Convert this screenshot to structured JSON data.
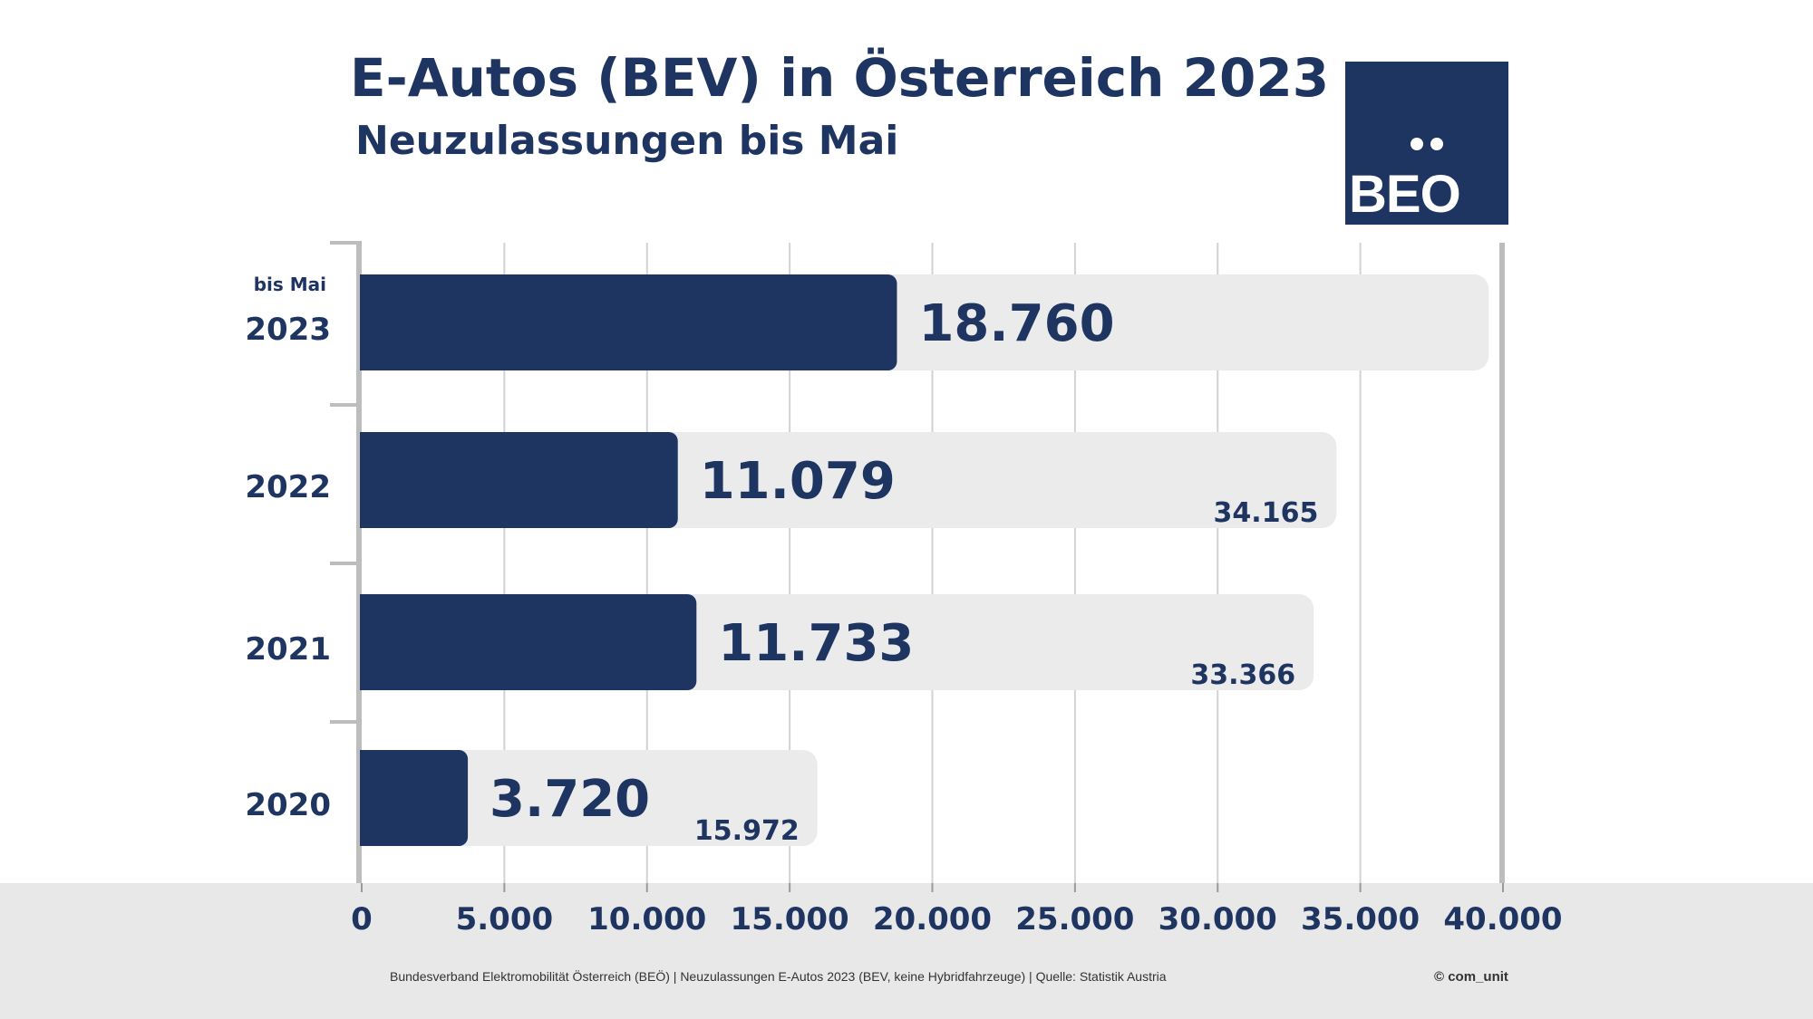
{
  "header": {
    "title": "E-Autos (BEV) in Österreich 2023",
    "subtitle": "Neuzulassungen bis Mai"
  },
  "logo": {
    "text": "BEO"
  },
  "colors": {
    "primary": "#1e3461",
    "bar_background": "#ebebeb",
    "grid": "#d2d2d2",
    "axis": "#bdbdbd",
    "footer_band": "#e8e8e8"
  },
  "chart_data": {
    "type": "bar",
    "orientation": "horizontal",
    "title": "E-Autos (BEV) in Österreich 2023",
    "subtitle": "Neuzulassungen bis Mai",
    "categories": [
      "2023",
      "2022",
      "2021",
      "2020"
    ],
    "category_notes": [
      "bis Mai",
      "",
      "",
      ""
    ],
    "series": [
      {
        "values": [
          18760,
          11079,
          11733,
          3720
        ],
        "labels": [
          "18.760",
          "11.079",
          "11.733",
          "3.720"
        ]
      },
      {
        "values": [
          39500,
          34165,
          33366,
          15972
        ],
        "labels": [
          "",
          "34.165",
          "33.366",
          "15.972"
        ]
      }
    ],
    "xlim": [
      0,
      40000
    ],
    "x_ticks": [
      0,
      5000,
      10000,
      15000,
      20000,
      25000,
      30000,
      35000,
      40000
    ],
    "x_tick_labels": [
      "0",
      "5.000",
      "10.000",
      "15.000",
      "20.000",
      "25.000",
      "30.000",
      "35.000",
      "40.000"
    ],
    "grid": true,
    "legend": "none"
  },
  "footer": {
    "source": "Bundesverband Elektromobilität Österreich (BEÖ) | Neuzulassungen E-Autos 2023 (BEV, keine Hybridfahrzeuge) | Quelle: Statistik Austria",
    "credit": "© com_unit"
  }
}
